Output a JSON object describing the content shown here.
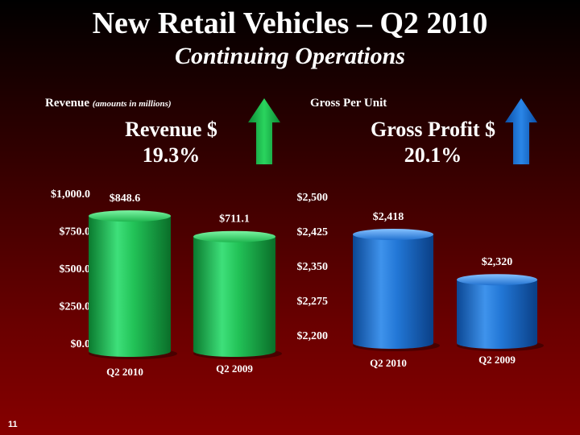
{
  "title": "New Retail Vehicles – Q2 2010",
  "subtitle": "Continuing Operations",
  "page_number": "11",
  "left_panel": {
    "label": "Revenue",
    "label_note": "(amounts in millions)",
    "metric_name": "Revenue $",
    "metric_change": "19.3%",
    "arrow_color": "#1db84a",
    "arrow_direction": "up"
  },
  "right_panel": {
    "label": "Gross Per Unit",
    "metric_name": "Gross Profit $",
    "metric_change": "20.1%",
    "arrow_color": "#1565c0",
    "arrow_direction": "up"
  },
  "chart_data": [
    {
      "type": "bar",
      "categories": [
        "Q2 2010",
        "Q2 2009"
      ],
      "values": [
        848.6,
        711.1
      ],
      "value_labels": [
        "$848.6",
        "$711.1"
      ],
      "ylim": [
        0,
        1000
      ],
      "y_ticks": [
        0,
        250,
        500,
        750,
        1000
      ],
      "y_tick_labels": [
        "$0.0",
        "$250.0",
        "$500.0",
        "$750.0",
        "$1,000.0"
      ],
      "color": "#1fb84c",
      "grid": false
    },
    {
      "type": "bar",
      "categories": [
        "Q2 2010",
        "Q2 2009"
      ],
      "values": [
        2418,
        2320
      ],
      "value_labels": [
        "$2,418",
        "$2,320"
      ],
      "ylim": [
        2200,
        2500
      ],
      "y_ticks": [
        2200,
        2275,
        2350,
        2425,
        2500
      ],
      "y_tick_labels": [
        "$2,200",
        "$2,275",
        "$2,350",
        "$2,425",
        "$2,500"
      ],
      "color": "#1b6fd0",
      "grid": false
    }
  ]
}
